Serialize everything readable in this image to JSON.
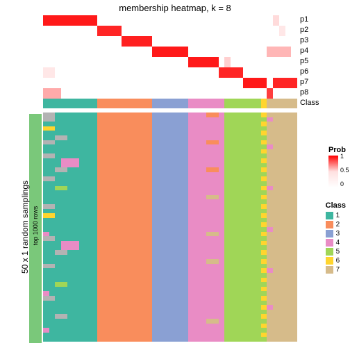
{
  "title": "membership heatmap, k = 8",
  "prob_rows": [
    "p1",
    "p2",
    "p3",
    "p4",
    "p5",
    "p6",
    "p7",
    "p8"
  ],
  "class_label": "Class",
  "sidebar_label": "50 x 1 random samplings",
  "sidebar_sublabel": "top 1000 rows",
  "prob_legend": {
    "title": "Prob",
    "ticks": [
      "1",
      "0.5",
      "0"
    ]
  },
  "class_legend": {
    "title": "Class",
    "items": [
      {
        "id": "1",
        "color": "#3eb6a0"
      },
      {
        "id": "2",
        "color": "#f98d5c"
      },
      {
        "id": "3",
        "color": "#8aa0d3"
      },
      {
        "id": "4",
        "color": "#e98cc5"
      },
      {
        "id": "5",
        "color": "#a0d657"
      },
      {
        "id": "6",
        "color": "#ffd52e"
      },
      {
        "id": "7",
        "color": "#d6bb8a"
      }
    ]
  },
  "column_classes": [
    1,
    1,
    1,
    1,
    1,
    1,
    1,
    1,
    1,
    2,
    2,
    2,
    2,
    2,
    2,
    2,
    2,
    2,
    3,
    3,
    3,
    3,
    3,
    3,
    4,
    4,
    4,
    4,
    4,
    4,
    5,
    5,
    5,
    5,
    5,
    5,
    6,
    7,
    7,
    7,
    7,
    7
  ],
  "col_count": 42,
  "prob_matrix": [
    {
      "row": 0,
      "start": 0,
      "end": 4,
      "intensity": 0.95
    },
    {
      "row": 0,
      "start": 4,
      "end": 9,
      "intensity": 0.95
    },
    {
      "row": 0,
      "start": 38,
      "end": 39,
      "intensity": 0.15
    },
    {
      "row": 1,
      "start": 9,
      "end": 13,
      "intensity": 0.9
    },
    {
      "row": 1,
      "start": 39,
      "end": 40,
      "intensity": 0.1
    },
    {
      "row": 2,
      "start": 13,
      "end": 18,
      "intensity": 0.92
    },
    {
      "row": 3,
      "start": 18,
      "end": 24,
      "intensity": 0.95
    },
    {
      "row": 3,
      "start": 37,
      "end": 41,
      "intensity": 0.3
    },
    {
      "row": 4,
      "start": 24,
      "end": 29,
      "intensity": 0.95
    },
    {
      "row": 4,
      "start": 30,
      "end": 31,
      "intensity": 0.2
    },
    {
      "row": 5,
      "start": 29,
      "end": 33,
      "intensity": 0.9
    },
    {
      "row": 5,
      "start": 0,
      "end": 2,
      "intensity": 0.1
    },
    {
      "row": 6,
      "start": 33,
      "end": 37,
      "intensity": 0.95
    },
    {
      "row": 6,
      "start": 38,
      "end": 42,
      "intensity": 0.9
    },
    {
      "row": 7,
      "start": 0,
      "end": 3,
      "intensity": 0.35
    },
    {
      "row": 7,
      "start": 37,
      "end": 38,
      "intensity": 0.8
    }
  ],
  "sampling_rows": 50,
  "class_colors": {
    "1": "#3eb6a0",
    "2": "#f98d5c",
    "3": "#8aa0d3",
    "4": "#e98cc5",
    "5": "#a0d657",
    "6": "#ffd52e",
    "7": "#d6bb8a",
    "grey": "#b3b3b3"
  },
  "noise_spec": [
    {
      "col_range": [
        0,
        2
      ],
      "rows": [
        0,
        1,
        6,
        9,
        14,
        20,
        27,
        33,
        40
      ],
      "cls": "grey"
    },
    {
      "col_range": [
        2,
        4
      ],
      "rows": [
        5,
        12,
        30,
        44
      ],
      "cls": "grey"
    },
    {
      "col_range": [
        0,
        2
      ],
      "rows": [
        3,
        22
      ],
      "cls": "6"
    },
    {
      "col_range": [
        3,
        6
      ],
      "rows": [
        10,
        11,
        28,
        29
      ],
      "cls": "4"
    },
    {
      "col_range": [
        2,
        4
      ],
      "rows": [
        16,
        37
      ],
      "cls": "5"
    },
    {
      "col_range": [
        24,
        26
      ],
      "rows": [
        2,
        10,
        20,
        30,
        40
      ],
      "cls": "4"
    },
    {
      "col_range": [
        27,
        29
      ],
      "rows": [
        0,
        6,
        12
      ],
      "cls": "2"
    },
    {
      "col_range": [
        27,
        29
      ],
      "rows": [
        18,
        26,
        32,
        45
      ],
      "cls": "7"
    },
    {
      "col_range": [
        36,
        37
      ],
      "rows": [
        0,
        2,
        4,
        6,
        8,
        10,
        12,
        14,
        16,
        18,
        20,
        22,
        24,
        26,
        28,
        30,
        32,
        34,
        36,
        38,
        40,
        42,
        44,
        46,
        48
      ],
      "cls": "6"
    },
    {
      "col_range": [
        36,
        37
      ],
      "rows": [
        1,
        3,
        5,
        7,
        9,
        11,
        13,
        15,
        17,
        19,
        21,
        23,
        25,
        27,
        29,
        31,
        33,
        35,
        37,
        39,
        41,
        43,
        45,
        47,
        49
      ],
      "cls": "5"
    },
    {
      "col_range": [
        37,
        38
      ],
      "rows": [
        1,
        7,
        16,
        25,
        34,
        42
      ],
      "cls": "4"
    },
    {
      "col_range": [
        0,
        1
      ],
      "rows": [
        26,
        39,
        47
      ],
      "cls": "4"
    }
  ],
  "sidebar_color": "#7ac87a"
}
